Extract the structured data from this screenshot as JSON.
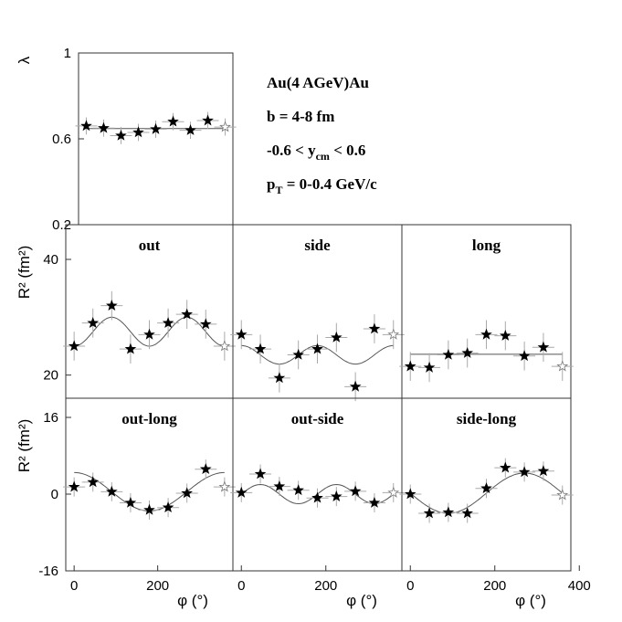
{
  "info": {
    "line1": "Au(4 AGeV)Au",
    "line2": "b = 4-8 fm",
    "line3_pre": "-0.6 < y",
    "line3_sub": "cm",
    "line3_post": " < 0.6",
    "line4_pre": "p",
    "line4_sub": "T",
    "line4_post": " = 0-0.4 GeV/c"
  },
  "chart_data": [
    {
      "id": "lambda",
      "type": "scatter",
      "title": "",
      "xlabel": "",
      "ylabel": "λ",
      "xlim": [
        -20,
        380
      ],
      "ylim": [
        0.2,
        1.0
      ],
      "yticks": [
        {
          "v": 1,
          "label": "1"
        },
        {
          "v": 0.6,
          "label": "0.6"
        },
        {
          "v": 0.2,
          "label": "0.2"
        }
      ],
      "x": [
        0,
        45,
        90,
        135,
        180,
        225,
        270,
        315,
        360
      ],
      "y": [
        0.66,
        0.65,
        0.615,
        0.63,
        0.645,
        0.68,
        0.64,
        0.685,
        0.655
      ],
      "yerr": 0.04,
      "fit": {
        "a0": 0.648,
        "c": 0.0,
        "s": 0.0,
        "n": 2
      }
    },
    {
      "id": "out",
      "type": "scatter",
      "title": "out",
      "xlabel": "",
      "ylabel": "R² (fm²)",
      "xlim": [
        -20,
        380
      ],
      "ylim": [
        16,
        46
      ],
      "yticks": [
        {
          "v": 40,
          "label": "40"
        },
        {
          "v": 20,
          "label": "20"
        }
      ],
      "x": [
        0,
        45,
        90,
        135,
        180,
        225,
        270,
        315,
        360
      ],
      "y": [
        25.0,
        29.0,
        32.0,
        24.5,
        27.0,
        29.0,
        30.5,
        28.8,
        25.0
      ],
      "yerr": 2.5,
      "fit": {
        "a0": 27.5,
        "c": -2.5,
        "s": 0.0,
        "n": 2
      }
    },
    {
      "id": "side",
      "type": "scatter",
      "title": "side",
      "xlabel": "",
      "ylabel": "",
      "xlim": [
        -20,
        380
      ],
      "ylim": [
        16,
        46
      ],
      "yticks": [],
      "x": [
        0,
        45,
        90,
        135,
        180,
        225,
        270,
        315,
        360
      ],
      "y": [
        27.0,
        24.5,
        19.5,
        23.5,
        24.5,
        26.5,
        18.0,
        28.0,
        27.0
      ],
      "yerr": 2.5,
      "fit": {
        "a0": 23.5,
        "c": 1.6,
        "s": 0.0,
        "n": 2
      }
    },
    {
      "id": "long",
      "type": "scatter",
      "title": "long",
      "xlabel": "",
      "ylabel": "",
      "xlim": [
        -20,
        380
      ],
      "ylim": [
        16,
        46
      ],
      "yticks": [],
      "x": [
        0,
        45,
        90,
        135,
        180,
        225,
        270,
        315,
        360
      ],
      "y": [
        21.5,
        21.3,
        23.5,
        23.8,
        27.0,
        26.8,
        23.3,
        24.8,
        21.5
      ],
      "yerr": 2.5,
      "fit": {
        "a0": 23.6,
        "c": 0.0,
        "s": 0.0,
        "n": 2
      }
    },
    {
      "id": "out-long",
      "type": "scatter",
      "title": "out-long",
      "xlabel": "φ (°)",
      "ylabel": "R² (fm²)",
      "xlim": [
        -20,
        380
      ],
      "ylim": [
        -16,
        20
      ],
      "yticks": [
        {
          "v": 16,
          "label": "16"
        },
        {
          "v": 0,
          "label": "0"
        },
        {
          "v": -16,
          "label": "-16"
        }
      ],
      "xticks": [
        {
          "v": 0,
          "label": "0"
        },
        {
          "v": 200,
          "label": "200"
        }
      ],
      "x": [
        0,
        45,
        90,
        135,
        180,
        225,
        270,
        315,
        360
      ],
      "y": [
        1.5,
        2.5,
        0.5,
        -1.8,
        -3.3,
        -2.8,
        0.2,
        5.2,
        1.5
      ],
      "yerr": 2.0,
      "fit": {
        "a0": 0.5,
        "c": 4.0,
        "s": 0.0,
        "n": 1
      }
    },
    {
      "id": "out-side",
      "type": "scatter",
      "title": "out-side",
      "xlabel": "φ (°)",
      "ylabel": "",
      "xlim": [
        -20,
        380
      ],
      "ylim": [
        -16,
        20
      ],
      "yticks": [],
      "xticks": [
        {
          "v": 0,
          "label": "0"
        },
        {
          "v": 200,
          "label": "200"
        }
      ],
      "x": [
        0,
        45,
        90,
        135,
        180,
        225,
        270,
        315,
        360
      ],
      "y": [
        0.3,
        4.2,
        1.6,
        0.8,
        -0.8,
        -0.5,
        0.6,
        -1.8,
        0.3
      ],
      "yerr": 2.0,
      "fit": {
        "a0": 0.0,
        "c": 0.0,
        "s": 2.0,
        "n": 2
      }
    },
    {
      "id": "side-long",
      "type": "scatter",
      "title": "side-long",
      "xlabel": "φ (°)",
      "ylabel": "",
      "xlim": [
        -20,
        380
      ],
      "ylim": [
        -16,
        20
      ],
      "yticks": [],
      "xticks": [
        {
          "v": 0,
          "label": "0"
        },
        {
          "v": 200,
          "label": "200"
        },
        {
          "v": 400,
          "label": "400"
        }
      ],
      "x": [
        0,
        45,
        90,
        135,
        180,
        225,
        270,
        315,
        360
      ],
      "y": [
        0.0,
        -4.0,
        -3.8,
        -4.0,
        1.2,
        5.5,
        4.6,
        4.8,
        -0.2
      ],
      "yerr": 2.0,
      "fit": {
        "a0": 0.2,
        "c": 0.0,
        "s": -4.2,
        "n": 1
      }
    }
  ]
}
